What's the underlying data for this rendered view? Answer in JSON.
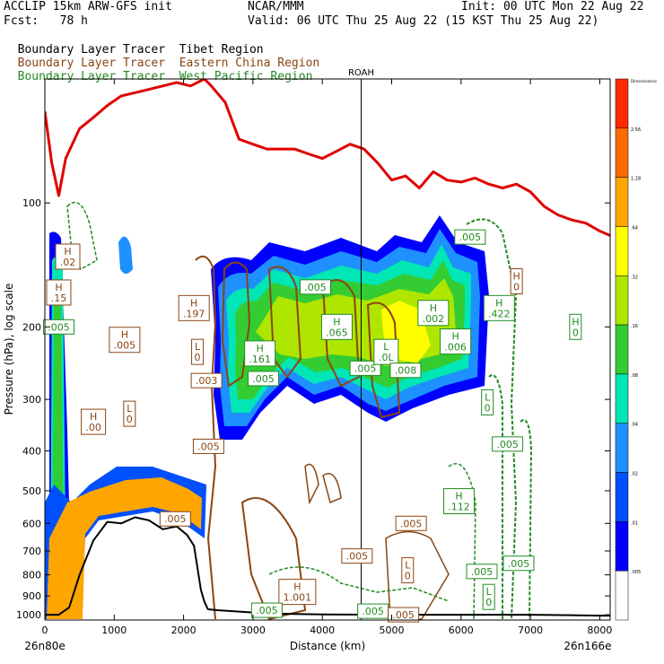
{
  "header": {
    "line1_left": "ACCLIP 15km ARW-GFS init",
    "line1_mid": "NCAR/MMM",
    "line1_right": "Init: 00 UTC Mon 22 Aug 22",
    "line2_left": "Fcst:   78 h",
    "line2_right": "Valid: 06 UTC Thu 25 Aug 22 (15 KST Thu 25 Aug 22)",
    "legend": [
      {
        "label": "Boundary Layer Tracer",
        "region": "Tibet Region",
        "color": "#000000"
      },
      {
        "label": "Boundary Layer Tracer",
        "region": "Eastern China Region",
        "color": "#8b4513"
      },
      {
        "label": "Boundary Layer Tracer",
        "region": "West Pacific Region",
        "color": "#228b22"
      }
    ]
  },
  "chart_data": {
    "type": "cross-section",
    "xlabel": "Distance (km)",
    "ylabel": "Pressure (hPa), log scale",
    "x_ticks": [
      0,
      1000,
      2000,
      3000,
      4000,
      5000,
      6000,
      7000,
      8000
    ],
    "y_ticks": [
      100,
      200,
      300,
      400,
      500,
      600,
      700,
      800,
      900,
      1000
    ],
    "xlim": [
      0,
      8150
    ],
    "ylim": [
      1030,
      50
    ],
    "left_endpoint": "26n80e",
    "right_endpoint": "26n166e",
    "marker": {
      "label": "ROAH",
      "x": 4560
    },
    "colorbar": {
      "levels": [
        "Dimensionless",
        "2.56",
        "1.28",
        ".64",
        ".32",
        ".16",
        ".08",
        ".04",
        ".02",
        ".01",
        ".005"
      ],
      "colors": [
        "#ff2a00",
        "#ff6a00",
        "#ffa500",
        "#ffff00",
        "#aee600",
        "#33cc33",
        "#00e6b4",
        "#1e90ff",
        "#0050ff",
        "#0000ff",
        "#ffffff"
      ]
    },
    "tropopause_series": {
      "name": "",
      "color": "#e00000",
      "x": [
        0,
        100,
        200,
        300,
        500,
        700,
        900,
        1100,
        1300,
        1500,
        1700,
        1900,
        2100,
        2300,
        2400,
        2600,
        2800,
        3000,
        3200,
        3400,
        3600,
        3800,
        4000,
        4200,
        4400,
        4600,
        4800,
        5000,
        5200,
        5400,
        5600,
        5800,
        6000,
        6200,
        6400,
        6600,
        6800,
        7000,
        7200,
        7400,
        7600,
        7800,
        8000,
        8150
      ],
      "p": [
        60,
        80,
        96,
        78,
        66,
        62,
        58,
        55,
        54,
        53,
        52,
        51,
        52,
        50,
        52,
        57,
        70,
        72,
        74,
        74,
        74,
        76,
        78,
        75,
        72,
        74,
        80,
        88,
        86,
        92,
        84,
        88,
        89,
        87,
        90,
        92,
        90,
        94,
        102,
        107,
        110,
        112,
        117,
        120
      ]
    },
    "terrain_series": {
      "name": "",
      "color": "#000000",
      "x": [
        0,
        200,
        350,
        500,
        700,
        900,
        1100,
        1300,
        1500,
        1700,
        1900,
        2050,
        2150,
        2250,
        2300,
        2350,
        2500,
        2700,
        2900,
        3100,
        3500,
        4000,
        5000,
        6000,
        7000,
        8000,
        8150
      ],
      "p": [
        1000,
        1000,
        960,
        800,
        660,
        595,
        600,
        580,
        590,
        620,
        610,
        640,
        680,
        870,
        930,
        970,
        975,
        980,
        985,
        990,
        995,
        998,
        1000,
        1000,
        1000,
        1005,
        1005
      ]
    },
    "annotations": [
      {
        "text": "H",
        "value": ".02",
        "x": 330,
        "p": 135,
        "color": "#8b4513"
      },
      {
        "text": "H",
        "value": ".15",
        "x": 200,
        "p": 165,
        "color": "#8b4513"
      },
      {
        "text": ".005",
        "x": 200,
        "p": 200,
        "color": "#228b22"
      },
      {
        "text": "H",
        "value": ".005",
        "x": 1150,
        "p": 215,
        "color": "#8b4513"
      },
      {
        "text": "H",
        "value": ".197",
        "x": 2150,
        "p": 180,
        "color": "#8b4513"
      },
      {
        "text": "L",
        "value": "0",
        "x": 2200,
        "p": 230,
        "color": "#8b4513"
      },
      {
        "text": ".003",
        "x": 2330,
        "p": 270,
        "color": "#8b4513"
      },
      {
        "text": "H",
        "value": ".161",
        "x": 3100,
        "p": 232,
        "color": "#228b22"
      },
      {
        "text": ".005",
        "x": 3150,
        "p": 267,
        "color": "#228b22"
      },
      {
        "text": ".005",
        "x": 3900,
        "p": 160,
        "color": "#228b22"
      },
      {
        "text": "H",
        "value": ".065",
        "x": 4210,
        "p": 200,
        "color": "#228b22"
      },
      {
        "text": ".005",
        "x": 4620,
        "p": 252,
        "color": "#228b22"
      },
      {
        "text": "L",
        "value": ".0L",
        "x": 4920,
        "p": 230,
        "color": "#228b22"
      },
      {
        "text": ".008",
        "x": 5200,
        "p": 255,
        "color": "#228b22"
      },
      {
        "text": "H",
        "value": ".002",
        "x": 5600,
        "p": 185,
        "color": "#228b22"
      },
      {
        "text": "H",
        "value": ".006",
        "x": 5920,
        "p": 217,
        "color": "#228b22"
      },
      {
        "text": ".005",
        "x": 6130,
        "p": 121,
        "color": "#228b22"
      },
      {
        "text": "H",
        "value": ".422",
        "x": 6550,
        "p": 180,
        "color": "#228b22"
      },
      {
        "text": "H",
        "value": "0",
        "x": 6800,
        "p": 155,
        "color": "#8b4513"
      },
      {
        "text": "H",
        "value": "0",
        "x": 7650,
        "p": 200,
        "color": "#228b22"
      },
      {
        "text": "H",
        "value": ".00",
        "x": 700,
        "p": 340,
        "color": "#8b4513"
      },
      {
        "text": "L",
        "value": "0",
        "x": 1220,
        "p": 325,
        "color": "#8b4513"
      },
      {
        "text": ".005",
        "x": 2360,
        "p": 390,
        "color": "#8b4513"
      },
      {
        "text": "L",
        "value": "0",
        "x": 6380,
        "p": 305,
        "color": "#228b22"
      },
      {
        "text": ".005",
        "x": 6670,
        "p": 385,
        "color": "#228b22"
      },
      {
        "text": "H",
        "value": ".112",
        "x": 5970,
        "p": 530,
        "color": "#228b22"
      },
      {
        "text": ".005",
        "x": 5280,
        "p": 600,
        "color": "#8b4513"
      },
      {
        "text": ".005",
        "x": 4500,
        "p": 720,
        "color": "#8b4513"
      },
      {
        "text": "L",
        "value": "0",
        "x": 5230,
        "p": 780,
        "color": "#8b4513"
      },
      {
        "text": ".005",
        "x": 6300,
        "p": 785,
        "color": "#228b22"
      },
      {
        "text": ".005",
        "x": 6830,
        "p": 750,
        "color": "#228b22"
      },
      {
        "text": "L",
        "value": "0",
        "x": 6400,
        "p": 905,
        "color": "#228b22"
      },
      {
        "text": ".005",
        "x": 1880,
        "p": 585,
        "color": "#8b4513"
      },
      {
        "text": "H",
        "value": "1.001",
        "x": 3640,
        "p": 880,
        "color": "#8b4513"
      },
      {
        "text": ".005",
        "x": 3200,
        "p": 975,
        "color": "#228b22"
      },
      {
        "text": ".005",
        "x": 4730,
        "p": 980,
        "color": "#228b22"
      },
      {
        "text": ".005",
        "x": 5170,
        "p": 1000,
        "color": "#8b4513"
      }
    ]
  }
}
